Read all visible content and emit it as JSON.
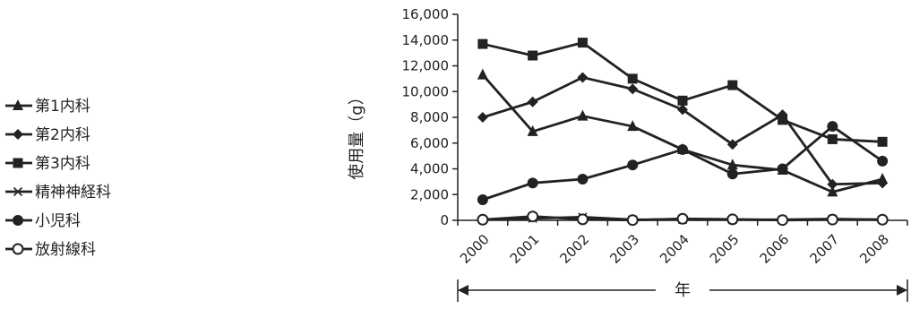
{
  "chart_data": {
    "type": "line",
    "xlabel": "年",
    "ylabel": "使用量（g）",
    "x": [
      "2000",
      "2001",
      "2002",
      "2003",
      "2004",
      "2005",
      "2006",
      "2007",
      "2008"
    ],
    "ylim": [
      0,
      16000
    ],
    "yticks": [
      "0",
      "2,000",
      "4,000",
      "6,000",
      "8,000",
      "10,000",
      "12,000",
      "14,000",
      "16,000"
    ],
    "grid": false,
    "legend_position": "left",
    "series": [
      {
        "name": "第1内科",
        "marker": "triangle",
        "values": [
          11300,
          6900,
          8100,
          7300,
          5500,
          4300,
          3900,
          2200,
          3200
        ]
      },
      {
        "name": "第2内科",
        "marker": "diamond",
        "values": [
          8000,
          9200,
          11100,
          10200,
          8600,
          5900,
          8200,
          2800,
          2900
        ]
      },
      {
        "name": "第3内科",
        "marker": "square",
        "values": [
          13700,
          12800,
          13800,
          11000,
          9300,
          10500,
          7800,
          6300,
          6100
        ]
      },
      {
        "name": "精神神経科",
        "marker": "asterisk",
        "values": [
          50,
          150,
          250,
          50,
          50,
          50,
          50,
          100,
          50
        ]
      },
      {
        "name": "小児科",
        "marker": "circle",
        "values": [
          1600,
          2900,
          3200,
          4300,
          5500,
          3600,
          4000,
          7300,
          4600
        ]
      },
      {
        "name": "放射線科",
        "marker": "open-circle",
        "values": [
          50,
          300,
          80,
          20,
          120,
          80,
          20,
          60,
          50
        ]
      }
    ]
  }
}
